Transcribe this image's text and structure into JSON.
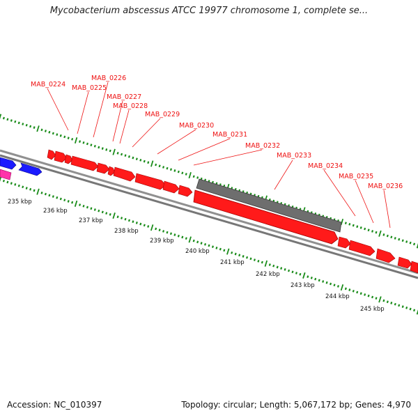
{
  "title": "Mycobacterium abscessus ATCC 19977 chromosome 1, complete se...",
  "footer": {
    "accession": "Accession: NC_010397",
    "summary": "Topology: circular; Length: 5,067,172 bp; Genes: 4,970"
  },
  "colors": {
    "gene_red": "#ff1a1a",
    "gene_red_dark": "#b30000",
    "gene_blue": "#1a1aff",
    "gene_magenta": "#ff33aa",
    "pseudogene_gray": "#707070",
    "backbone": "#8a8a8a",
    "tick_green": "#1a8c1a",
    "label_red": "#ee1111"
  },
  "kbp_labels": [
    "235 kbp",
    "236 kbp",
    "237 kbp",
    "238 kbp",
    "239 kbp",
    "240 kbp",
    "241 kbp",
    "242 kbp",
    "243 kbp",
    "244 kbp",
    "245 kbp"
  ],
  "gene_labels": [
    "MAB_0224",
    "MAB_0225",
    "MAB_0226",
    "MAB_0227",
    "MAB_0228",
    "MAB_0229",
    "MAB_0230",
    "MAB_0231",
    "MAB_0232",
    "MAB_0233",
    "MAB_0234",
    "MAB_0235",
    "MAB_0236"
  ]
}
